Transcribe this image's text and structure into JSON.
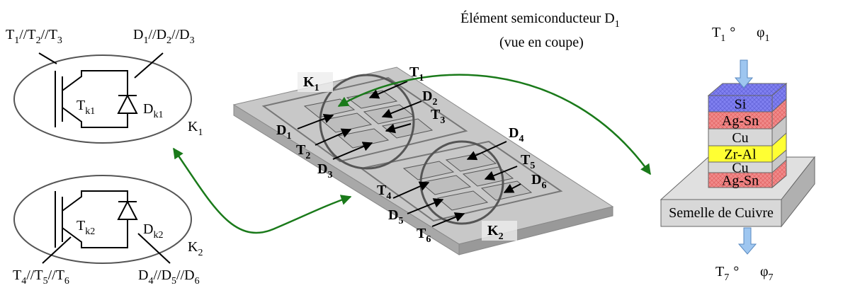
{
  "separator": "//",
  "module_K1": {
    "label": {
      "base": "K",
      "sub": "1"
    },
    "transistor": {
      "base": "T",
      "sub": "k1"
    },
    "diode": {
      "base": "D",
      "sub": "k1"
    },
    "transistor_group": [
      {
        "base": "T",
        "sub": "1"
      },
      {
        "base": "T",
        "sub": "2"
      },
      {
        "base": "T",
        "sub": "3"
      }
    ],
    "diode_group": [
      {
        "base": "D",
        "sub": "1"
      },
      {
        "base": "D",
        "sub": "2"
      },
      {
        "base": "D",
        "sub": "3"
      }
    ]
  },
  "module_K2": {
    "label": {
      "base": "K",
      "sub": "2"
    },
    "transistor": {
      "base": "T",
      "sub": "k2"
    },
    "diode": {
      "base": "D",
      "sub": "k2"
    },
    "transistor_group": [
      {
        "base": "T",
        "sub": "4"
      },
      {
        "base": "T",
        "sub": "5"
      },
      {
        "base": "T",
        "sub": "6"
      }
    ],
    "diode_group": [
      {
        "base": "D",
        "sub": "4"
      },
      {
        "base": "D",
        "sub": "5"
      },
      {
        "base": "D",
        "sub": "6"
      }
    ]
  },
  "plate": {
    "labels": [
      {
        "base": "K",
        "sub": "1"
      },
      {
        "base": "T",
        "sub": "1"
      },
      {
        "base": "D",
        "sub": "2"
      },
      {
        "base": "T",
        "sub": "3"
      },
      {
        "base": "D",
        "sub": "1"
      },
      {
        "base": "T",
        "sub": "2"
      },
      {
        "base": "D",
        "sub": "3"
      },
      {
        "base": "D",
        "sub": "4"
      },
      {
        "base": "T",
        "sub": "5"
      },
      {
        "base": "D",
        "sub": "6"
      },
      {
        "base": "T",
        "sub": "4"
      },
      {
        "base": "D",
        "sub": "5"
      },
      {
        "base": "T",
        "sub": "6"
      },
      {
        "base": "K",
        "sub": "2"
      }
    ]
  },
  "section": {
    "title": {
      "base": "Élément semiconducteur D",
      "sub": "1"
    },
    "subtitle": "(vue en coupe)",
    "top_temperature": {
      "base": "T",
      "sub": "1",
      "suffix": "°"
    },
    "top_flux": {
      "base": "φ",
      "sub": "1"
    },
    "layers": [
      "Si",
      "Ag-Sn",
      "Cu",
      "Zr-Al",
      "Cu",
      "Ag-Sn"
    ],
    "base_plate": "Semelle de Cuivre",
    "bottom_temperature": {
      "base": "T",
      "sub": "7",
      "suffix": "°"
    },
    "bottom_flux": {
      "base": "φ",
      "sub": "7"
    }
  }
}
